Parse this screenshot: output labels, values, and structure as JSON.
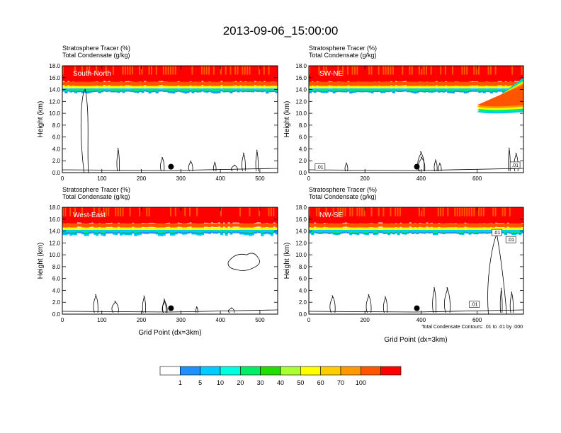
{
  "figure": {
    "title": "2013-09-06_15:00:00",
    "xlabel": "Grid Point (dx=3km)",
    "ylabel": "Height (km)",
    "header_line1": "Stratosphere Tracer   (%)",
    "header_line2": "Total Condensate   (g/kg)",
    "contour_note": "Total Condensate Contours: .01 to .01 by .000"
  },
  "colors": {
    "levels": [
      "#ffffff",
      "#1e90ff",
      "#00ccff",
      "#00ffe0",
      "#00ee66",
      "#22dd00",
      "#aaff33",
      "#ffff00",
      "#ffcc00",
      "#ff9900",
      "#ff5500",
      "#ff0000"
    ],
    "contour": "#000000",
    "marker": "#000000"
  },
  "colorbar": {
    "labels": [
      "1",
      "5",
      "10",
      "20",
      "30",
      "40",
      "50",
      "60",
      "70",
      "100"
    ]
  },
  "chart_data": [
    {
      "type": "heatmap",
      "panel": "South-North",
      "xlim": [
        0,
        545
      ],
      "ylim": [
        0,
        18
      ],
      "xticks": [
        "0",
        "100",
        "200",
        "300",
        "400",
        "500"
      ],
      "xtick_values": [
        0,
        100,
        200,
        300,
        400,
        500
      ],
      "yticks": [
        "0.0",
        "2.0",
        "4.0",
        "6.0",
        "8.0",
        "10.0",
        "12.0",
        "14.0",
        "16.0",
        "18.0"
      ],
      "ytick_values": [
        0,
        2,
        4,
        6,
        8,
        10,
        12,
        14,
        16,
        18
      ],
      "tracer_bands": [
        {
          "level": ">=100",
          "bottom_km": 15.3,
          "top_km": 18
        },
        {
          "level": "70-100",
          "bottom_km": 14.6,
          "top_km": 15.3
        },
        {
          "level": "40-70",
          "bottom_km": 14.2,
          "top_km": 14.6
        },
        {
          "level": "5-40",
          "bottom_km": 13.6,
          "top_km": 14.2
        }
      ],
      "marker": {
        "x": 275,
        "y": 1.0
      },
      "contour_labels": []
    },
    {
      "type": "heatmap",
      "panel": "SW-NE",
      "xlim": [
        0,
        765
      ],
      "ylim": [
        0,
        18
      ],
      "xticks": [
        "0",
        "200",
        "400",
        "600"
      ],
      "xtick_values": [
        0,
        200,
        400,
        600
      ],
      "yticks": [
        "0.0",
        "2.0",
        "4.0",
        "6.0",
        "8.0",
        "10.0",
        "12.0",
        "14.0",
        "16.0",
        "18.0"
      ],
      "ytick_values": [
        0,
        2,
        4,
        6,
        8,
        10,
        12,
        14,
        16,
        18
      ],
      "tracer_bands": [
        {
          "level": ">=100",
          "bottom_km": 15.3,
          "top_km": 18
        },
        {
          "level": "70-100",
          "bottom_km": 14.6,
          "top_km": 15.3
        },
        {
          "level": "40-70",
          "bottom_km": 14.2,
          "top_km": 14.6
        },
        {
          "level": "5-40",
          "bottom_km": 13.6,
          "top_km": 14.2
        }
      ],
      "intrusion": {
        "x_start": 600,
        "x_end": 765,
        "low_km": 10.2,
        "high_km": 14.5
      },
      "marker": {
        "x": 385,
        "y": 1.0
      },
      "contour_labels": [
        {
          "text": ".01",
          "x": 40,
          "y": 0.9
        },
        {
          "text": ".01",
          "x": 735,
          "y": 1.2
        }
      ]
    },
    {
      "type": "heatmap",
      "panel": "West-East",
      "xlim": [
        0,
        545
      ],
      "ylim": [
        0,
        18
      ],
      "xticks": [
        "0",
        "100",
        "200",
        "300",
        "400",
        "500"
      ],
      "xtick_values": [
        0,
        100,
        200,
        300,
        400,
        500
      ],
      "yticks": [
        "0.0",
        "2.0",
        "4.0",
        "6.0",
        "8.0",
        "10.0",
        "12.0",
        "14.0",
        "16.0",
        "18.0"
      ],
      "ytick_values": [
        0,
        2,
        4,
        6,
        8,
        10,
        12,
        14,
        16,
        18
      ],
      "tracer_bands": [
        {
          "level": ">=100",
          "bottom_km": 15.3,
          "top_km": 18
        },
        {
          "level": "70-100",
          "bottom_km": 14.6,
          "top_km": 15.3
        },
        {
          "level": "40-70",
          "bottom_km": 14.2,
          "top_km": 14.6
        },
        {
          "level": "5-40",
          "bottom_km": 13.4,
          "top_km": 14.2
        }
      ],
      "marker": {
        "x": 275,
        "y": 1.0
      },
      "contour_labels": []
    },
    {
      "type": "heatmap",
      "panel": "NW-SE",
      "xlim": [
        0,
        765
      ],
      "ylim": [
        0,
        18
      ],
      "xticks": [
        "0",
        "200",
        "400",
        "600"
      ],
      "xtick_values": [
        0,
        200,
        400,
        600
      ],
      "yticks": [
        "0.0",
        "2.0",
        "4.0",
        "6.0",
        "8.0",
        "10.0",
        "12.0",
        "14.0",
        "16.0",
        "18.0"
      ],
      "ytick_values": [
        0,
        2,
        4,
        6,
        8,
        10,
        12,
        14,
        16,
        18
      ],
      "tracer_bands": [
        {
          "level": ">=100",
          "bottom_km": 15.3,
          "top_km": 18
        },
        {
          "level": "70-100",
          "bottom_km": 14.6,
          "top_km": 15.3
        },
        {
          "level": "40-70",
          "bottom_km": 14.2,
          "top_km": 14.6
        },
        {
          "level": "5-40",
          "bottom_km": 13.6,
          "top_km": 14.2
        }
      ],
      "marker": {
        "x": 385,
        "y": 1.0
      },
      "contour_labels": [
        {
          "text": ".01",
          "x": 670,
          "y": 13.7
        },
        {
          "text": ".01",
          "x": 720,
          "y": 12.5
        },
        {
          "text": ".01",
          "x": 590,
          "y": 1.6
        }
      ]
    }
  ]
}
